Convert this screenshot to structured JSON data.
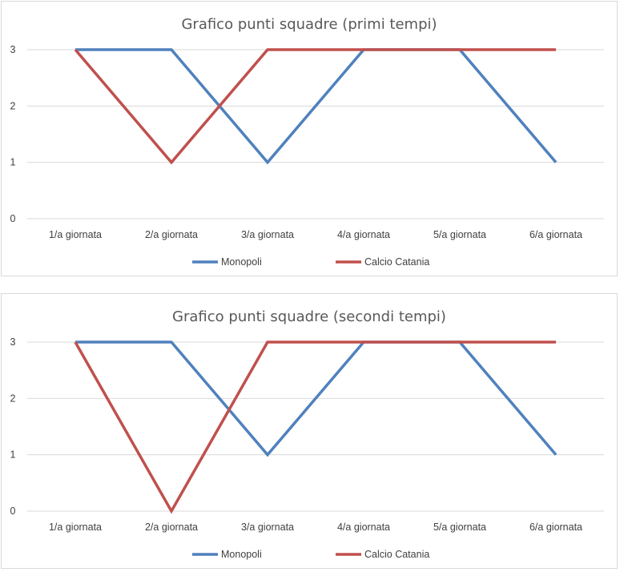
{
  "chart_data": [
    {
      "type": "line",
      "title": "Grafico punti squadre (primi tempi)",
      "categories": [
        "1/a giornata",
        "2/a giornata",
        "3/a giornata",
        "4/a giornata",
        "5/a giornata",
        "6/a giornata"
      ],
      "yticks": [
        "0",
        "1",
        "2",
        "3"
      ],
      "ylim": [
        0,
        3
      ],
      "grid": true,
      "legend": "bottom",
      "series": [
        {
          "name": "Monopoli",
          "color": "#4f81bd",
          "values": [
            3,
            3,
            1,
            3,
            3,
            1
          ]
        },
        {
          "name": "Calcio Catania",
          "color": "#c0504d",
          "values": [
            3,
            1,
            3,
            3,
            3,
            3
          ]
        }
      ]
    },
    {
      "type": "line",
      "title": "Grafico punti squadre (secondi tempi)",
      "categories": [
        "1/a giornata",
        "2/a giornata",
        "3/a giornata",
        "4/a giornata",
        "5/a giornata",
        "6/a giornata"
      ],
      "yticks": [
        "0",
        "1",
        "2",
        "3"
      ],
      "ylim": [
        0,
        3
      ],
      "grid": true,
      "legend": "bottom",
      "series": [
        {
          "name": "Monopoli",
          "color": "#4f81bd",
          "values": [
            3,
            3,
            1,
            3,
            3,
            1
          ]
        },
        {
          "name": "Calcio Catania",
          "color": "#c0504d",
          "values": [
            3,
            0,
            3,
            3,
            3,
            3
          ]
        }
      ]
    }
  ]
}
